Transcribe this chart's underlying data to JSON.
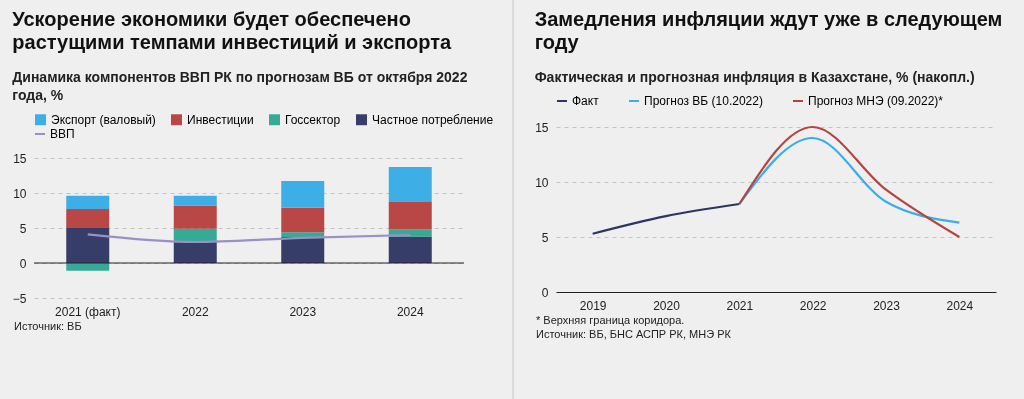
{
  "chart_data": [
    {
      "type": "bar",
      "title": "Ускорение экономики будет обеспечено растущими темпами инвестиций и экспорта",
      "subtitle": "Динамика компонентов ВВП РК по прогнозам ВБ от октября 2022 года, %",
      "categories": [
        "2021 (факт)",
        "2022",
        "2023",
        "2024"
      ],
      "stacked": true,
      "series": [
        {
          "name": "Частное потребление",
          "color": "#363d68",
          "values": [
            5.1,
            3.0,
            3.7,
            3.8
          ]
        },
        {
          "name": "Госсектор",
          "color": "#35ab97",
          "values": [
            -1.1,
            1.9,
            0.7,
            1.0
          ]
        },
        {
          "name": "Инвестиции",
          "color": "#b94745",
          "values": [
            2.6,
            3.3,
            3.5,
            3.9
          ]
        },
        {
          "name": "Экспорт (валовый)",
          "color": "#3eaee6",
          "values": [
            1.9,
            1.4,
            3.8,
            5.0
          ]
        },
        {
          "name": "ВВП",
          "type": "line",
          "color": "#9b8fc6",
          "values": [
            4.1,
            3.0,
            3.6,
            4.0
          ]
        }
      ],
      "ylim": [
        -5,
        15
      ],
      "yticks": [
        -5,
        0,
        5,
        10,
        15
      ],
      "grid": "y",
      "legend": "top left",
      "marker": "none",
      "line_style": "solid",
      "ref_lines": [
        {
          "axis": "y",
          "value": 0,
          "color": "#222222"
        }
      ],
      "annotations": [
        "Источник: ВБ"
      ]
    },
    {
      "type": "line",
      "title": "Замедления инфляции ждут уже в следующем году",
      "subtitle": "Фактическая и прогнозная инфляция в Казахстане, % (накопл.)",
      "categories": [
        "2019",
        "2020",
        "2021",
        "2022",
        "2023",
        "2024"
      ],
      "series": [
        {
          "name": "Факт",
          "color": "#2e3560",
          "values": [
            5.3,
            6.9,
            8.0,
            null,
            null,
            null
          ]
        },
        {
          "name": "Прогноз ВБ (10.2022)",
          "color": "#3aaee6",
          "values": [
            null,
            null,
            8.0,
            14.0,
            8.2,
            6.3
          ]
        },
        {
          "name": "Прогноз МНЭ (09.2022)*",
          "color": "#b5443f",
          "values": [
            null,
            null,
            8.0,
            15.0,
            9.3,
            5.0
          ]
        }
      ],
      "ylim": [
        0,
        15
      ],
      "yticks": [
        0,
        5,
        10,
        15
      ],
      "grid": "y",
      "legend": "top left",
      "marker": "none",
      "line_style": "solid",
      "annotations": [
        "* Верхняя граница коридора.",
        "Источник: ВБ, БНС АСПР РК, МНЭ РК"
      ]
    }
  ]
}
